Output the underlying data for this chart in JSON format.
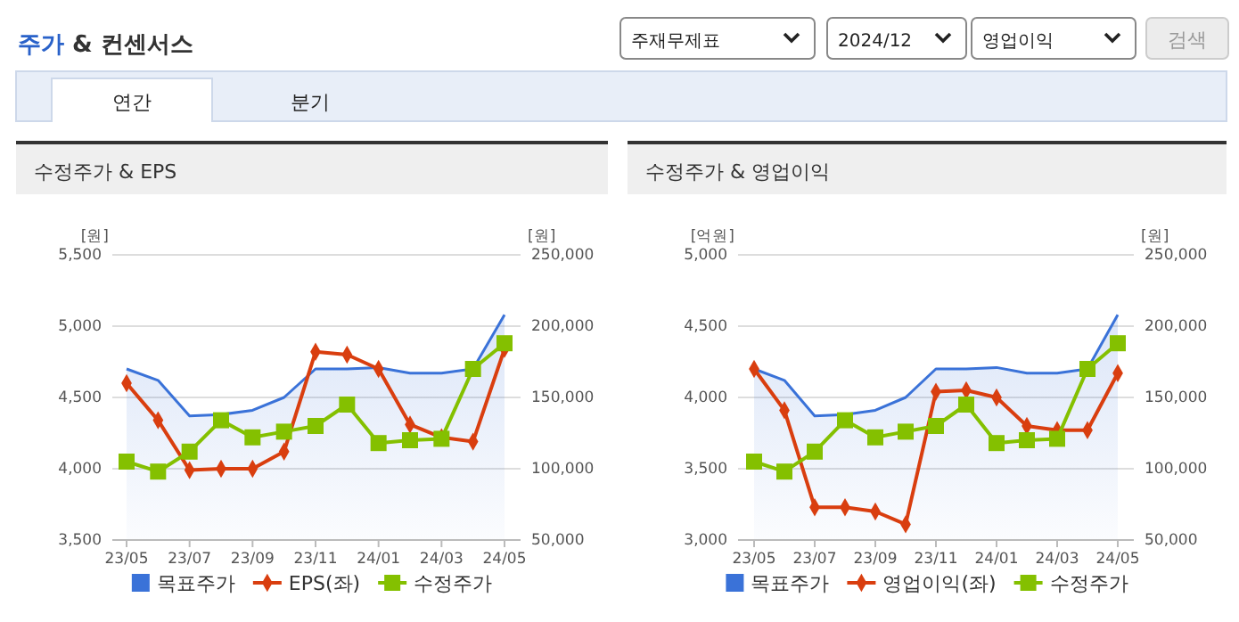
{
  "chart_data": [
    {
      "type": "line",
      "title": "수정주가 & EPS",
      "ylabel": "[원]",
      "y2label": "[원]",
      "annotations": [
        "주가 & 컨센서스",
        "주재무제표",
        "2024/12",
        "영업이익",
        "검색",
        "연간",
        "분기"
      ],
      "categories": [
        "23/05",
        null,
        "23/07",
        null,
        "23/09",
        null,
        "23/11",
        null,
        "24/01",
        null,
        "24/03",
        null,
        "24/05"
      ],
      "series": [
        {
          "name": "목표주가",
          "type": "area",
          "axis": "y2",
          "color": "#3a72d8",
          "marker": "none",
          "values": [
            170000,
            162000,
            137000,
            138000,
            141000,
            150000,
            170000,
            170000,
            171000,
            167000,
            167000,
            170000,
            208000
          ]
        },
        {
          "name": "EPS(좌)",
          "color": "#d93e0f",
          "marker": "diamond",
          "values": [
            4600,
            4340,
            3990,
            4000,
            4000,
            4120,
            4820,
            4800,
            4700,
            4310,
            4220,
            4190,
            4840
          ]
        },
        {
          "name": "수정주가",
          "axis": "y2",
          "color": "#84c000",
          "marker": "square",
          "values": [
            105000,
            98000,
            112000,
            134000,
            122000,
            126000,
            130000,
            145000,
            118000,
            120000,
            121000,
            170000,
            188000
          ]
        }
      ],
      "ylim": [
        3500,
        5500
      ],
      "yticks": [
        {
          "value": 3500,
          "label": "3,500"
        },
        {
          "value": 4000,
          "label": "4,000"
        },
        {
          "value": 4500,
          "label": "4,500"
        },
        {
          "value": 5000,
          "label": "5,000"
        },
        {
          "value": 5500,
          "label": "5,500"
        }
      ],
      "y2lim": [
        50000,
        250000
      ],
      "y2ticks": [
        {
          "value": 50000,
          "label": "50,000"
        },
        {
          "value": 100000,
          "label": "100,000"
        },
        {
          "value": 150000,
          "label": "150,000"
        },
        {
          "value": 200000,
          "label": "200,000"
        },
        {
          "value": 250000,
          "label": "250,000"
        }
      ],
      "grid": "y",
      "legend": "bottom"
    },
    {
      "type": "line",
      "title": "수정주가 & 영업이익",
      "ylabel": "[억원]",
      "y2label": "[원]",
      "categories": [
        "23/05",
        null,
        "23/07",
        null,
        "23/09",
        null,
        "23/11",
        null,
        "24/01",
        null,
        "24/03",
        null,
        "24/05"
      ],
      "series": [
        {
          "name": "목표주가",
          "type": "area",
          "axis": "y2",
          "color": "#3a72d8",
          "marker": "none",
          "values": [
            170000,
            162000,
            137000,
            138000,
            141000,
            150000,
            170000,
            170000,
            171000,
            167000,
            167000,
            170000,
            208000
          ]
        },
        {
          "name": "영업이익(좌)",
          "color": "#d93e0f",
          "marker": "diamond",
          "values": [
            4200,
            3910,
            3230,
            3230,
            3200,
            3110,
            4040,
            4050,
            4000,
            3800,
            3770,
            3770,
            4170
          ]
        },
        {
          "name": "수정주가",
          "axis": "y2",
          "color": "#84c000",
          "marker": "square",
          "values": [
            105000,
            98000,
            112000,
            134000,
            122000,
            126000,
            130000,
            145000,
            118000,
            120000,
            121000,
            170000,
            188000
          ]
        }
      ],
      "ylim": [
        3000,
        5000
      ],
      "yticks": [
        {
          "value": 3000,
          "label": "3,000"
        },
        {
          "value": 3500,
          "label": "3,500"
        },
        {
          "value": 4000,
          "label": "4,000"
        },
        {
          "value": 4500,
          "label": "4,500"
        },
        {
          "value": 5000,
          "label": "5,000"
        }
      ],
      "y2lim": [
        50000,
        250000
      ],
      "y2ticks": [
        {
          "value": 50000,
          "label": "50,000"
        },
        {
          "value": 100000,
          "label": "100,000"
        },
        {
          "value": 150000,
          "label": "150,000"
        },
        {
          "value": 200000,
          "label": "200,000"
        },
        {
          "value": 250000,
          "label": "250,000"
        }
      ],
      "grid": "y",
      "legend": "bottom"
    }
  ]
}
